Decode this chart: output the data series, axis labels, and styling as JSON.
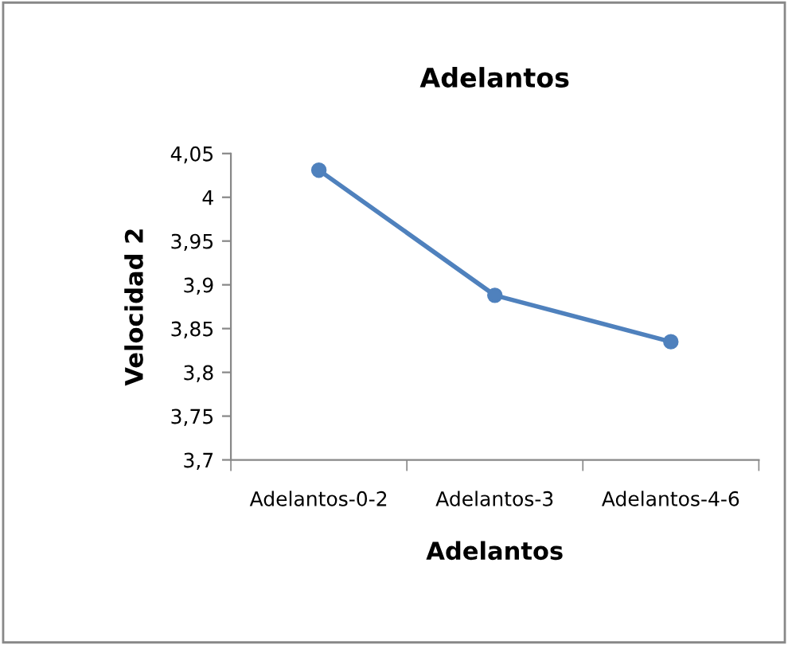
{
  "chart_data": {
    "type": "line",
    "title": "Adelantos",
    "xlabel": "Adelantos",
    "ylabel": "Velocidad 2",
    "categories": [
      "Adelantos-0-2",
      "Adelantos-3",
      "Adelantos-4-6"
    ],
    "series": [
      {
        "color": "#4f81bd",
        "values": [
          4.031,
          3.888,
          3.835
        ]
      }
    ],
    "ylim": [
      3.7,
      4.05
    ],
    "yticks": [
      {
        "value": 3.7,
        "label": "3,7"
      },
      {
        "value": 3.75,
        "label": "3,75"
      },
      {
        "value": 3.8,
        "label": "3,8"
      },
      {
        "value": 3.85,
        "label": "3,85"
      },
      {
        "value": 3.9,
        "label": "3,9"
      },
      {
        "value": 3.95,
        "label": "3,95"
      },
      {
        "value": 4.0,
        "label": "4"
      },
      {
        "value": 4.05,
        "label": "4,05"
      }
    ],
    "grid": false,
    "legend": false,
    "marker": "circle",
    "line_style": "solid"
  }
}
